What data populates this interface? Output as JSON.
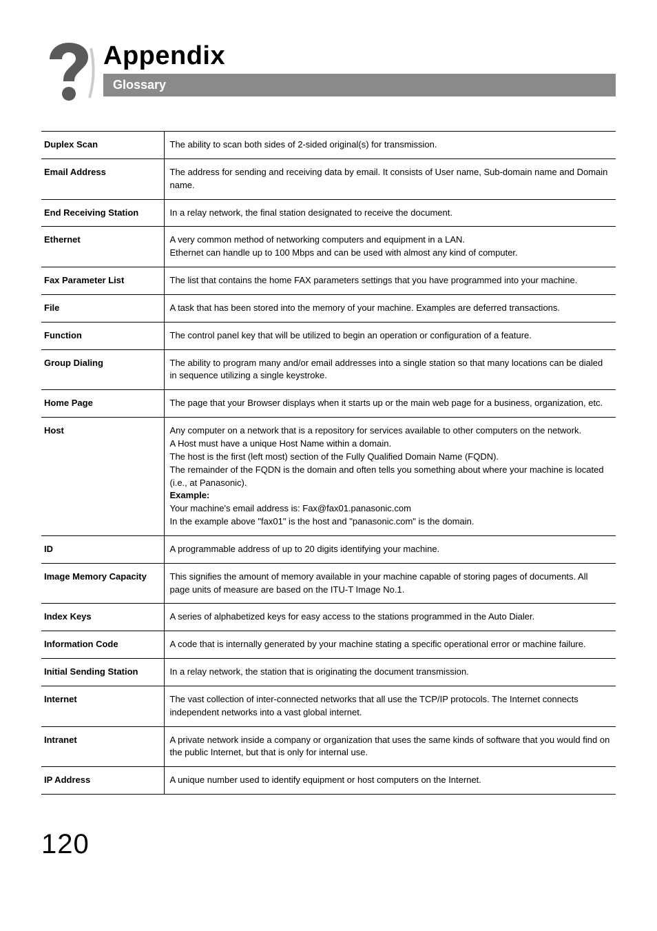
{
  "header": {
    "title": "Appendix",
    "subtitle": "Glossary",
    "icon_fill": "#5a5a5a",
    "subtitle_bg": "#8a8a8a",
    "subtitle_color": "#ffffff"
  },
  "page_number": "120",
  "glossary": [
    {
      "term": "Duplex Scan",
      "definition": "The ability to scan both sides of 2-sided original(s) for transmission."
    },
    {
      "term": "Email Address",
      "definition": "The address for sending and receiving data by email. It consists of User name, Sub-domain name and Domain name."
    },
    {
      "term": "End Receiving Station",
      "definition": "In a relay network, the final station designated to receive the document."
    },
    {
      "term": "Ethernet",
      "definition": "A very common method of networking computers and equipment in a LAN.\nEthernet can handle up to 100 Mbps and can be used with almost any kind of computer."
    },
    {
      "term": "Fax Parameter List",
      "definition": "The list that contains the home FAX parameters settings that you have programmed into your machine."
    },
    {
      "term": "File",
      "definition": "A task that has been stored into the memory of your machine. Examples are deferred transactions."
    },
    {
      "term": "Function",
      "definition": "The control panel key that will be utilized to begin an operation or configuration of a feature."
    },
    {
      "term": "Group Dialing",
      "definition": "The ability to program many and/or email addresses into a single station so that many locations can be dialed in sequence utilizing a single keystroke."
    },
    {
      "term": "Home Page",
      "definition": "The page that your Browser displays when it starts up or the main web page for a business, organization, etc."
    },
    {
      "term": "Host",
      "definition_pre": "Any computer on a network that is a repository for services available to other computers on the network.\nA Host must have a unique Host Name within a domain.\nThe host is the first (left most) section of the Fully Qualified Domain Name (FQDN).\nThe remainder of the FQDN is the domain and often tells you something about where your machine is located (i.e., at Panasonic).",
      "bold_label": "Example:",
      "definition_post": "Your machine's email address is: Fax@fax01.panasonic.com\nIn the example above \"fax01\" is the host and \"panasonic.com\" is the domain."
    },
    {
      "term": "ID",
      "definition": "A programmable address of up to 20 digits identifying your machine."
    },
    {
      "term": "Image Memory Capacity",
      "definition": "This signifies the amount of memory available in your machine capable of storing pages of documents. All page units of measure are based on the ITU-T Image No.1."
    },
    {
      "term": "Index Keys",
      "definition": "A series of alphabetized keys for easy access to the stations programmed in the Auto Dialer."
    },
    {
      "term": "Information Code",
      "definition": "A code that is internally generated by your machine stating a specific operational error or machine failure."
    },
    {
      "term": "Initial Sending Station",
      "definition": "In a relay network, the station that is originating the document transmission."
    },
    {
      "term": "Internet",
      "definition": "The vast collection of inter-connected networks that all use the TCP/IP protocols. The Internet connects independent networks into a vast global internet."
    },
    {
      "term": "Intranet",
      "definition": "A private network inside a company or organization that uses the same kinds of software that you would find on the public Internet, but that is only for internal use."
    },
    {
      "term": "IP Address",
      "definition": "A unique number used to identify equipment or host computers on the Internet."
    }
  ]
}
